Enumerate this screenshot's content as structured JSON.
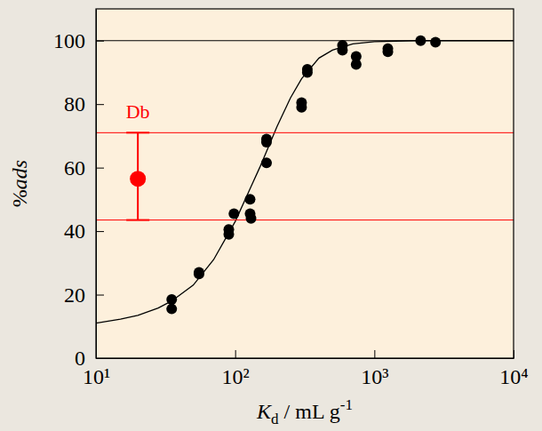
{
  "chart_data": {
    "type": "scatter",
    "x_label": [
      "K",
      "d",
      " / mL g",
      "-1"
    ],
    "y_label": [
      "%",
      "ads"
    ],
    "log": "x",
    "xlim": [
      10,
      10000
    ],
    "ylim": [
      0,
      110
    ],
    "xticks": [
      {
        "value": 10,
        "label": "10¹"
      },
      {
        "value": 100,
        "label": "10²"
      },
      {
        "value": 1000,
        "label": "10³"
      },
      {
        "value": 10000,
        "label": "10⁴"
      }
    ],
    "yticks": [
      0,
      20,
      40,
      60,
      80,
      100
    ],
    "hline": 100,
    "series": [
      {
        "type": "scatter",
        "color": "#000000",
        "marker": "circle",
        "x": [
          35,
          35,
          55,
          55,
          90,
          90,
          98,
          128,
          128,
          130,
          168,
          168,
          168,
          300,
          300,
          330,
          330,
          590,
          590,
          740,
          740,
          1250,
          1250,
          2150,
          2750
        ],
        "values": [
          18.5,
          15.5,
          26.5,
          27,
          40.5,
          39,
          45.5,
          50,
          45.5,
          44,
          68,
          69,
          61.5,
          80.5,
          79,
          90,
          91,
          98.5,
          97,
          95,
          92.5,
          97.5,
          96.5,
          100,
          99.5
        ]
      },
      {
        "type": "line",
        "color": "#000000",
        "line_style": "solid",
        "x": [
          10,
          15,
          20,
          28,
          35,
          50,
          70,
          100,
          130,
          150,
          200,
          250,
          300,
          400,
          500,
          700,
          1000,
          2000,
          10000
        ],
        "values": [
          11,
          12.3,
          13.5,
          15.8,
          18,
          23,
          31,
          43,
          54,
          60,
          73,
          82,
          88,
          94.5,
          97,
          99,
          99.7,
          100,
          100
        ]
      },
      {
        "name": "Db",
        "type": "scatter",
        "color": "#ff0000",
        "marker": "circle",
        "x": [
          20
        ],
        "values": [
          56.5
        ],
        "error_minus": [
          13
        ],
        "error_plus": [
          14.5
        ]
      }
    ]
  }
}
